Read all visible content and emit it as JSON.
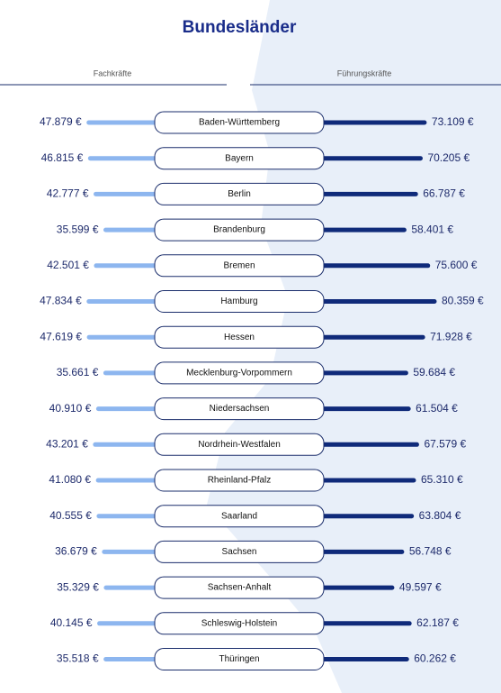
{
  "chart_data": {
    "type": "butterfly",
    "title": "Bundesländer",
    "categories": [
      "Baden-Württemberg",
      "Bayern",
      "Berlin",
      "Brandenburg",
      "Bremen",
      "Hamburg",
      "Hessen",
      "Mecklenburg-Vorpommern",
      "Niedersachsen",
      "Nordrhein-Westfalen",
      "Rheinland-Pfalz",
      "Saarland",
      "Sachsen",
      "Sachsen-Anhalt",
      "Schleswig-Holstein",
      "Thüringen"
    ],
    "series": [
      {
        "name": "Fachkräfte",
        "color": "#8db6ef",
        "values": [
          47879,
          46815,
          42777,
          35599,
          42501,
          47834,
          47619,
          35661,
          40910,
          43201,
          41080,
          40555,
          36679,
          35329,
          40145,
          35518
        ],
        "value_labels": [
          "47.879 €",
          "46.815 €",
          "42.777 €",
          "35.599 €",
          "42.501 €",
          "47.834 €",
          "47.619 €",
          "35.661 €",
          "40.910 €",
          "43.201 €",
          "41.080 €",
          "40.555 €",
          "36.679 €",
          "35.329 €",
          "40.145 €",
          "35.518 €"
        ]
      },
      {
        "name": "Führungskräfte",
        "color": "#0f2a7a",
        "values": [
          73109,
          70205,
          66787,
          58401,
          75600,
          80359,
          71928,
          59684,
          61504,
          67579,
          65310,
          63804,
          56748,
          49597,
          62187,
          60262
        ],
        "value_labels": [
          "73.109 €",
          "70.205 €",
          "66.787 €",
          "58.401 €",
          "75.600 €",
          "80.359 €",
          "71.928 €",
          "59.684 €",
          "61.504 €",
          "67.579 €",
          "65.310 €",
          "63.804 €",
          "56.748 €",
          "49.597 €",
          "62.187 €",
          "60.262 €"
        ]
      }
    ]
  }
}
